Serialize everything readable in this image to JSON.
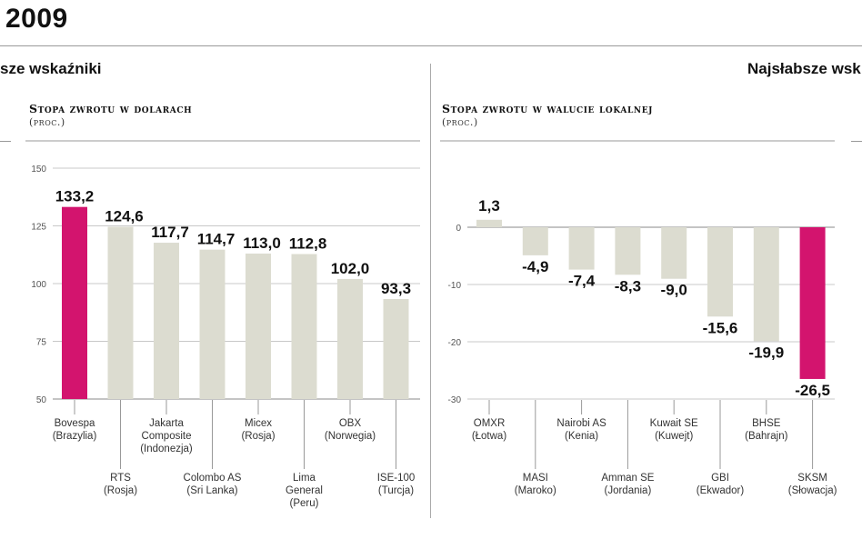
{
  "header": {
    "year": "2009",
    "left_section": "sze wskaźniki",
    "right_section": "Najsłabsze wsk"
  },
  "chart_data": [
    {
      "type": "bar",
      "title": "Stopa zwrotu w dolarach",
      "unit_label": "(proc.)",
      "ylim": [
        50,
        150
      ],
      "yticks": [
        "150",
        "125",
        "100",
        "75",
        "50"
      ],
      "yticks_values": [
        150,
        125,
        100,
        75,
        50
      ],
      "grid": true,
      "highlight_color": "#d3146e",
      "bar_color": "#dcdcd0",
      "categories": [
        {
          "name": "Bovespa",
          "country": "(Brazylia)"
        },
        {
          "name": "RTS",
          "country": "(Rosja)"
        },
        {
          "name": "Jakarta Composite",
          "country": "(Indonezja)"
        },
        {
          "name": "Colombo AS",
          "country": "(Sri Lanka)"
        },
        {
          "name": "Micex",
          "country": "(Rosja)"
        },
        {
          "name": "Lima General",
          "country": "(Peru)"
        },
        {
          "name": "OBX",
          "country": "(Norwegia)"
        },
        {
          "name": "ISE-100",
          "country": "(Turcja)"
        }
      ],
      "values": [
        133.2,
        124.6,
        117.7,
        114.7,
        113.0,
        112.8,
        102.0,
        93.3
      ],
      "value_labels": [
        "133,2",
        "124,6",
        "117,7",
        "114,7",
        "113,0",
        "112,8",
        "102,0",
        "93,3"
      ],
      "highlight_index": 0
    },
    {
      "type": "bar",
      "title": "Stopa zwrotu w walucie lokalnej",
      "unit_label": "(proc.)",
      "ylim": [
        -30,
        5
      ],
      "yticks": [
        "0",
        "-10",
        "-20",
        "-30"
      ],
      "yticks_values": [
        0,
        -10,
        -20,
        -30
      ],
      "grid": true,
      "highlight_color": "#d3146e",
      "bar_color": "#dcdcd0",
      "categories": [
        {
          "name": "OMXR",
          "country": "(Łotwa)"
        },
        {
          "name": "MASI",
          "country": "(Maroko)"
        },
        {
          "name": "Nairobi AS",
          "country": "(Kenia)"
        },
        {
          "name": "Amman SE",
          "country": "(Jordania)"
        },
        {
          "name": "Kuwait SE",
          "country": "(Kuwejt)"
        },
        {
          "name": "GBI",
          "country": "(Ekwador)"
        },
        {
          "name": "BHSE",
          "country": "(Bahrajn)"
        },
        {
          "name": "SKSM",
          "country": "(Słowacja)"
        }
      ],
      "values": [
        1.3,
        -4.9,
        -7.4,
        -8.3,
        -9.0,
        -15.6,
        -19.9,
        -26.5
      ],
      "value_labels": [
        "1,3",
        "-4,9",
        "-7,4",
        "-8,3",
        "-9,0",
        "-15,6",
        "-19,9",
        "-26,5"
      ],
      "highlight_index": 7
    }
  ]
}
